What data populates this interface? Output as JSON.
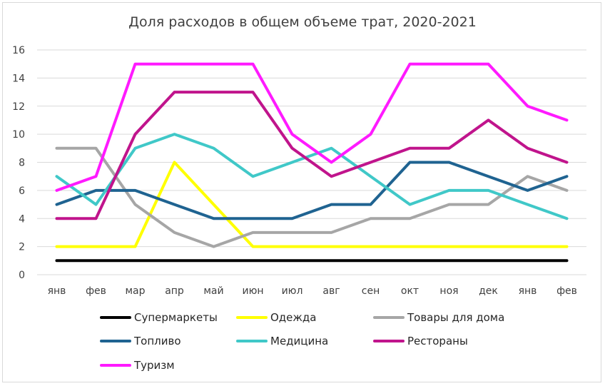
{
  "chart_data": {
    "type": "line",
    "title": "Доля расходов в общем объеме трат, 2020-2021",
    "xlabel": "",
    "ylabel": "",
    "ylim": [
      0,
      16
    ],
    "yticks": [
      0,
      2,
      4,
      6,
      8,
      10,
      12,
      14,
      16
    ],
    "grid": true,
    "legend_position": "bottom",
    "categories": [
      "янв",
      "фев",
      "мар",
      "апр",
      "май",
      "июн",
      "июл",
      "авг",
      "сен",
      "окт",
      "ноя",
      "дек",
      "янв",
      "фев"
    ],
    "series": [
      {
        "name": "Супермаркеты",
        "color": "#000000",
        "values": [
          1,
          1,
          1,
          1,
          1,
          1,
          1,
          1,
          1,
          1,
          1,
          1,
          1,
          1
        ]
      },
      {
        "name": "Одежда",
        "color": "#ffff00",
        "values": [
          2,
          2,
          2,
          8,
          5,
          2,
          2,
          2,
          2,
          2,
          2,
          2,
          2,
          2
        ]
      },
      {
        "name": "Товары для дома",
        "color": "#a6a6a6",
        "values": [
          9,
          9,
          5,
          3,
          2,
          3,
          3,
          3,
          4,
          4,
          5,
          5,
          7,
          6
        ]
      },
      {
        "name": "Топливо",
        "color": "#1f6391",
        "values": [
          5,
          6,
          6,
          5,
          4,
          4,
          4,
          5,
          5,
          8,
          8,
          7,
          6,
          7
        ]
      },
      {
        "name": "Медицина",
        "color": "#40c8c8",
        "values": [
          7,
          5,
          9,
          10,
          9,
          7,
          8,
          9,
          7,
          5,
          6,
          6,
          5,
          4
        ]
      },
      {
        "name": "Рестораны",
        "color": "#c0148c",
        "values": [
          4,
          4,
          10,
          13,
          13,
          13,
          9,
          7,
          8,
          9,
          9,
          11,
          9,
          8
        ]
      },
      {
        "name": "Туризм",
        "color": "#ff1aff",
        "values": [
          6,
          7,
          15,
          15,
          15,
          15,
          10,
          8,
          10,
          15,
          15,
          15,
          12,
          11
        ]
      }
    ]
  }
}
